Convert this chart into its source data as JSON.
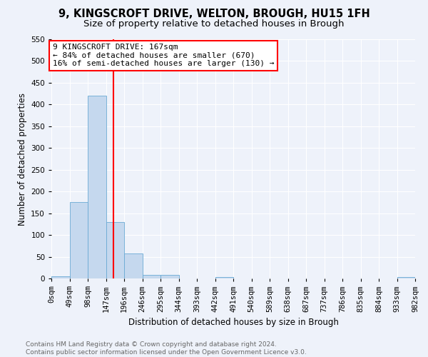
{
  "title1": "9, KINGSCROFT DRIVE, WELTON, BROUGH, HU15 1FH",
  "title2": "Size of property relative to detached houses in Brough",
  "xlabel": "Distribution of detached houses by size in Brough",
  "ylabel": "Number of detached properties",
  "bin_edges": [
    0,
    49,
    98,
    147,
    196,
    245,
    294,
    343,
    392,
    441,
    490,
    539,
    588,
    637,
    686,
    735,
    784,
    833,
    882,
    931,
    980
  ],
  "bar_heights": [
    5,
    175,
    420,
    130,
    58,
    8,
    8,
    0,
    0,
    3,
    0,
    0,
    0,
    0,
    0,
    0,
    0,
    0,
    0,
    3
  ],
  "bar_color": "#c5d8ee",
  "bar_edge_color": "#6aaad4",
  "property_size": 167,
  "annotation_text": "9 KINGSCROFT DRIVE: 167sqm\n← 84% of detached houses are smaller (670)\n16% of semi-detached houses are larger (130) →",
  "annotation_box_color": "white",
  "annotation_box_edge_color": "red",
  "vline_color": "red",
  "ylim": [
    0,
    550
  ],
  "xlim": [
    0,
    980
  ],
  "xtick_labels": [
    "0sqm",
    "49sqm",
    "98sqm",
    "147sqm",
    "196sqm",
    "246sqm",
    "295sqm",
    "344sqm",
    "393sqm",
    "442sqm",
    "491sqm",
    "540sqm",
    "589sqm",
    "638sqm",
    "687sqm",
    "737sqm",
    "786sqm",
    "835sqm",
    "884sqm",
    "933sqm",
    "982sqm"
  ],
  "footer": "Contains HM Land Registry data © Crown copyright and database right 2024.\nContains public sector information licensed under the Open Government Licence v3.0.",
  "bg_color": "#eef2fa",
  "grid_color": "#ffffff",
  "title_fontsize": 10.5,
  "subtitle_fontsize": 9.5,
  "axis_label_fontsize": 8.5,
  "tick_fontsize": 7.5,
  "annotation_fontsize": 8,
  "footer_fontsize": 6.5
}
